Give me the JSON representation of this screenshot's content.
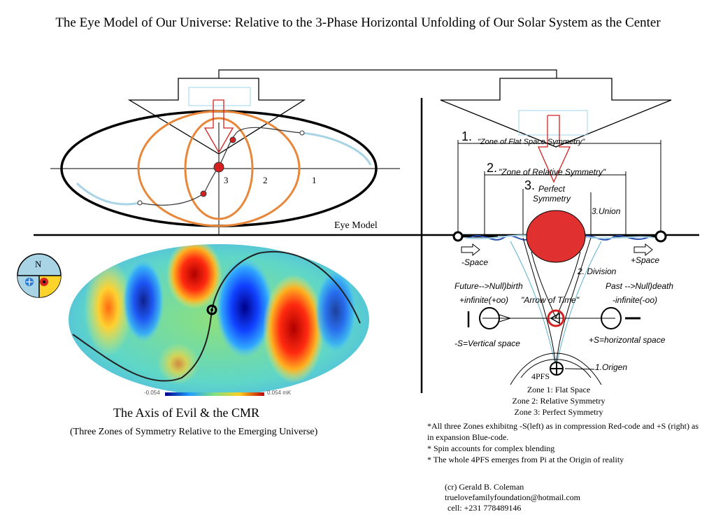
{
  "title": "The Eye Model of Our Universe: Relative to the 3-Phase Horizontal Unfolding of Our Solar System as the Center",
  "eye_model": {
    "label": "Eye Model",
    "zone_numbers": [
      "3",
      "2",
      "1"
    ]
  },
  "compass": {
    "letter": "N"
  },
  "cmr_map": {
    "scale_min": "-0.054",
    "scale_max": "0.054 mK",
    "caption": "The Axis of Evil  & the CMR",
    "subcaption": "(Three Zones of Symmetry Relative to the Emerging Universe)"
  },
  "right_diagram": {
    "zone1_num": "1.",
    "zone1_label": "\"Zone of Flat Space Symmetry\"",
    "zone2_num": "2.",
    "zone2_label": "\"Zone of Relative Symmetry\"",
    "zone3_num": "3.",
    "zone3_label_a": "Perfect",
    "zone3_label_b": "Symmetry",
    "union": "3.Union",
    "minus_space": "-Space",
    "plus_space": "+Space",
    "division": "2. Division",
    "future": "Future-->Null)birth",
    "past": "Past -->Null)death",
    "plus_infinite": "+infinite(+oo)",
    "minus_infinite": "-infinite(-oo)",
    "arrow_of_time": "\"Arrow of Time\"",
    "vertical_space": "-S=Vertical space",
    "horizontal_space": "+S=horizontal space",
    "pfs": "4PFS",
    "origen": "1.Origen"
  },
  "zones_list": [
    "Zone 1: Flat Space",
    "Zone 2: Relative Symmetry",
    "Zone 3: Perfect Symmetry"
  ],
  "notes": [
    "*All three Zones exhibitng -S(left) as in compression Red-code and +S (right) as in expansion Blue-code.",
    "* Spin accounts for complex blending",
    "* The whole 4PFS emerges from Pi at the Origin of reality"
  ],
  "credit": {
    "line1": "(cr) Gerald B. Coleman",
    "line2": "truelovefamilyfoundation@hotmail.com",
    "line3": "cell: +231 778489146"
  },
  "colors": {
    "orange": "#e8873a",
    "red": "#d42020",
    "light_blue": "#a8d4e6",
    "blue_wave": "#2a4fb0"
  }
}
